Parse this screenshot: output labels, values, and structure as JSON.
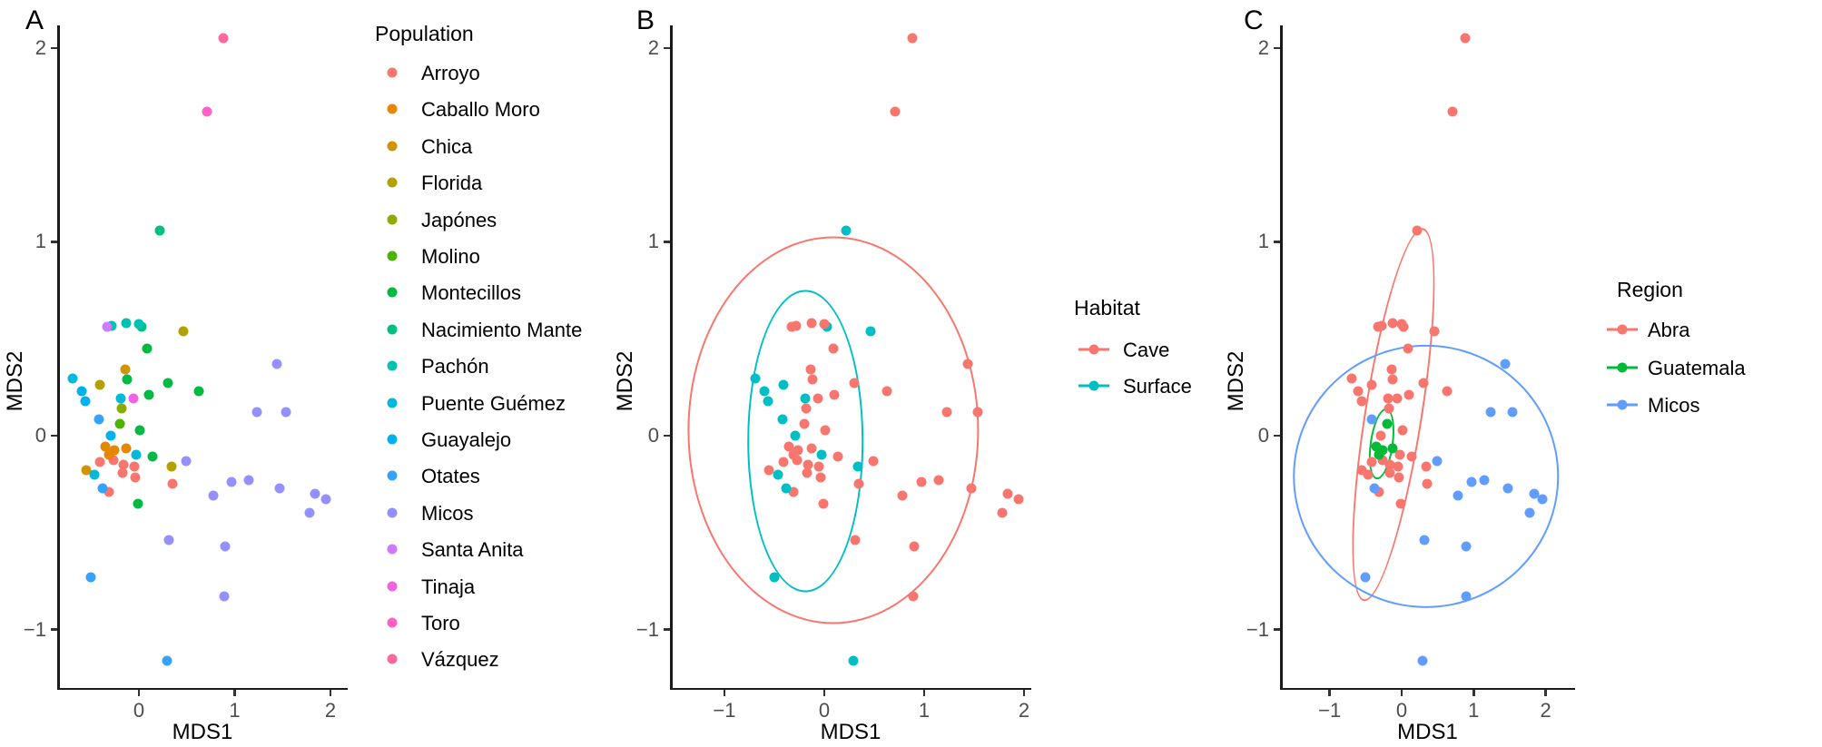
{
  "chart_data": {
    "type": "scatter",
    "description": "Three-panel MDS ordination scatter plot (same points colored three ways)",
    "panels": [
      {
        "id": "A",
        "label": "A",
        "xlabel": "MDS1",
        "ylabel": "MDS2",
        "color_by": "population",
        "x_domain": [
          -0.834,
          2.161
        ],
        "y_domain": [
          -1.302,
          2.117
        ],
        "x_ticks": [
          0,
          1,
          2
        ],
        "y_ticks": [
          -1,
          0,
          1,
          2
        ],
        "x_tick_labels": [
          "0",
          "1",
          "2"
        ],
        "y_tick_labels": [
          "−1",
          "0",
          "1",
          "2"
        ],
        "grid": false
      },
      {
        "id": "B",
        "label": "B",
        "xlabel": "MDS1",
        "ylabel": "MDS2",
        "color_by": "habitat",
        "x_domain": [
          -1.527,
          2.055
        ],
        "y_domain": [
          -1.302,
          2.117
        ],
        "x_ticks": [
          -1,
          0,
          1,
          2
        ],
        "y_ticks": [
          -1,
          0,
          1,
          2
        ],
        "x_tick_labels": [
          "−1",
          "0",
          "1",
          "2"
        ],
        "y_tick_labels": [
          "−1",
          "0",
          "1",
          "2"
        ],
        "grid": false
      },
      {
        "id": "C",
        "label": "C",
        "xlabel": "MDS1",
        "ylabel": "MDS2",
        "color_by": "region",
        "x_domain": [
          -1.664,
          2.383
        ],
        "y_domain": [
          -1.302,
          2.117
        ],
        "x_ticks": [
          -1,
          0,
          1,
          2
        ],
        "y_ticks": [
          -1,
          0,
          1,
          2
        ],
        "x_tick_labels": [
          "−1",
          "0",
          "1",
          "2"
        ],
        "y_tick_labels": [
          "−1",
          "0",
          "1",
          "2"
        ],
        "grid": false
      }
    ],
    "palettes": {
      "population": {
        "Arroyo": "#F8766D",
        "Caballo Moro": "#E58700",
        "Chica": "#CF9400",
        "Florida": "#B2A100",
        "Japónes": "#8CAB00",
        "Molino": "#4CB400",
        "Montecillos": "#00BA42",
        "Nacimiento Mante": "#00BF7F",
        "Pachón": "#00C1B2",
        "Puente Guémez": "#00B9DB",
        "Guayalejo": "#00B0F0",
        "Otates": "#35A2FF",
        "Micos": "#9590FF",
        "Santa Anita": "#CC7AFF",
        "Tinaja": "#F163E0",
        "Toro": "#FF61C7",
        "Vázquez": "#FF689E"
      },
      "habitat": {
        "Cave": "#F8766D",
        "Surface": "#00BFC4"
      },
      "region": {
        "Abra": "#F8766D",
        "Guatemala": "#00BA38",
        "Micos": "#619CFF"
      }
    },
    "legends": {
      "population": {
        "title": "Population",
        "items": [
          {
            "label": "Arroyo",
            "color": "#F8766D"
          },
          {
            "label": "Caballo Moro",
            "color": "#E58700"
          },
          {
            "label": "Chica",
            "color": "#CF9400"
          },
          {
            "label": "Florida",
            "color": "#B2A100"
          },
          {
            "label": "Japónes",
            "color": "#8CAB00"
          },
          {
            "label": "Molino",
            "color": "#4CB400"
          },
          {
            "label": "Montecillos",
            "color": "#00BA42"
          },
          {
            "label": "Nacimiento Mante",
            "color": "#00BF7F"
          },
          {
            "label": "Pachón",
            "color": "#00C1B2"
          },
          {
            "label": "Puente Guémez",
            "color": "#00B9DB"
          },
          {
            "label": "Guayalejo",
            "color": "#00B0F0"
          },
          {
            "label": "Otates",
            "color": "#35A2FF"
          },
          {
            "label": "Micos",
            "color": "#9590FF"
          },
          {
            "label": "Santa Anita",
            "color": "#CC7AFF"
          },
          {
            "label": "Tinaja",
            "color": "#F163E0"
          },
          {
            "label": "Toro",
            "color": "#FF61C7"
          },
          {
            "label": "Vázquez",
            "color": "#FF689E"
          }
        ]
      },
      "habitat": {
        "title": "Habitat",
        "items": [
          {
            "label": "Cave",
            "color": "#F8766D"
          },
          {
            "label": "Surface",
            "color": "#00BFC4"
          }
        ]
      },
      "region": {
        "title": "Region",
        "items": [
          {
            "label": "Abra",
            "color": "#F8766D"
          },
          {
            "label": "Guatemala",
            "color": "#00BA38"
          },
          {
            "label": "Micos",
            "color": "#619CFF"
          }
        ]
      }
    },
    "points": [
      {
        "x": -0.41,
        "y": -0.135,
        "population": "Arroyo",
        "habitat": "Cave",
        "region": "Abra"
      },
      {
        "x": -0.27,
        "y": -0.125,
        "population": "Arroyo",
        "habitat": "Cave",
        "region": "Abra"
      },
      {
        "x": -0.16,
        "y": -0.15,
        "population": "Arroyo",
        "habitat": "Cave",
        "region": "Abra"
      },
      {
        "x": -0.05,
        "y": -0.16,
        "population": "Arroyo",
        "habitat": "Cave",
        "region": "Abra"
      },
      {
        "x": -0.04,
        "y": -0.215,
        "population": "Arroyo",
        "habitat": "Cave",
        "region": "Abra"
      },
      {
        "x": -0.31,
        "y": -0.29,
        "population": "Arroyo",
        "habitat": "Cave",
        "region": "Abra"
      },
      {
        "x": 0.35,
        "y": -0.25,
        "population": "Arroyo",
        "habitat": "Cave",
        "region": "Abra"
      },
      {
        "x": -0.17,
        "y": -0.19,
        "population": "Arroyo",
        "habitat": "Cave",
        "region": "Abra"
      },
      {
        "x": -0.35,
        "y": -0.055,
        "population": "Caballo Moro",
        "habitat": "Cave",
        "region": "Guatemala"
      },
      {
        "x": -0.26,
        "y": -0.075,
        "population": "Caballo Moro",
        "habitat": "Cave",
        "region": "Guatemala"
      },
      {
        "x": -0.31,
        "y": -0.1,
        "population": "Caballo Moro",
        "habitat": "Cave",
        "region": "Guatemala"
      },
      {
        "x": -0.13,
        "y": -0.065,
        "population": "Caballo Moro",
        "habitat": "Cave",
        "region": "Guatemala"
      },
      {
        "x": -0.14,
        "y": 0.34,
        "population": "Chica",
        "habitat": "Cave",
        "region": "Abra"
      },
      {
        "x": -0.55,
        "y": -0.18,
        "population": "Chica",
        "habitat": "Cave",
        "region": "Abra"
      },
      {
        "x": 0.46,
        "y": 0.54,
        "population": "Florida",
        "habitat": "Surface",
        "region": "Abra"
      },
      {
        "x": -0.41,
        "y": 0.26,
        "population": "Florida",
        "habitat": "Surface",
        "region": "Abra"
      },
      {
        "x": 0.34,
        "y": -0.16,
        "population": "Florida",
        "habitat": "Surface",
        "region": "Abra"
      },
      {
        "x": -0.18,
        "y": 0.14,
        "population": "Japónes",
        "habitat": "Cave",
        "region": "Abra"
      },
      {
        "x": -0.2,
        "y": 0.06,
        "population": "Molino",
        "habitat": "Cave",
        "region": "Guatemala"
      },
      {
        "x": 0.09,
        "y": 0.45,
        "population": "Montecillos",
        "habitat": "Cave",
        "region": "Abra"
      },
      {
        "x": 0.63,
        "y": 0.23,
        "population": "Montecillos",
        "habitat": "Cave",
        "region": "Abra"
      },
      {
        "x": 0.01,
        "y": 0.03,
        "population": "Montecillos",
        "habitat": "Cave",
        "region": "Abra"
      },
      {
        "x": 0.14,
        "y": -0.11,
        "population": "Montecillos",
        "habitat": "Cave",
        "region": "Abra"
      },
      {
        "x": -0.01,
        "y": -0.35,
        "population": "Montecillos",
        "habitat": "Cave",
        "region": "Abra"
      },
      {
        "x": 0.3,
        "y": 0.27,
        "population": "Montecillos",
        "habitat": "Cave",
        "region": "Abra"
      },
      {
        "x": -0.12,
        "y": 0.29,
        "population": "Montecillos",
        "habitat": "Cave",
        "region": "Abra"
      },
      {
        "x": 0.1,
        "y": 0.21,
        "population": "Montecillos",
        "habitat": "Cave",
        "region": "Abra"
      },
      {
        "x": 0.22,
        "y": 1.06,
        "population": "Nacimiento Mante",
        "habitat": "Surface",
        "region": "Abra"
      },
      {
        "x": 0.03,
        "y": 0.56,
        "population": "Nacimiento Mante",
        "habitat": "Surface",
        "region": "Abra"
      },
      {
        "x": -0.28,
        "y": 0.565,
        "population": "Pachón",
        "habitat": "Cave",
        "region": "Abra"
      },
      {
        "x": -0.13,
        "y": 0.58,
        "population": "Pachón",
        "habitat": "Cave",
        "region": "Abra"
      },
      {
        "x": 0.0,
        "y": 0.575,
        "population": "Pachón",
        "habitat": "Cave",
        "region": "Abra"
      },
      {
        "x": -0.69,
        "y": 0.295,
        "population": "Puente Guémez",
        "habitat": "Surface",
        "region": "Abra"
      },
      {
        "x": -0.03,
        "y": -0.1,
        "population": "Puente Guémez",
        "habitat": "Surface",
        "region": "Abra"
      },
      {
        "x": -0.46,
        "y": -0.2,
        "population": "Puente Guémez",
        "habitat": "Surface",
        "region": "Abra"
      },
      {
        "x": -0.19,
        "y": 0.19,
        "population": "Puente Guémez",
        "habitat": "Surface",
        "region": "Abra"
      },
      {
        "x": -0.6,
        "y": 0.23,
        "population": "Guayalejo",
        "habitat": "Surface",
        "region": "Abra"
      },
      {
        "x": -0.56,
        "y": 0.18,
        "population": "Guayalejo",
        "habitat": "Surface",
        "region": "Abra"
      },
      {
        "x": -0.29,
        "y": 0.0,
        "population": "Guayalejo",
        "habitat": "Surface",
        "region": "Abra"
      },
      {
        "x": -0.42,
        "y": 0.085,
        "population": "Otates",
        "habitat": "Surface",
        "region": "Micos"
      },
      {
        "x": -0.38,
        "y": -0.27,
        "population": "Otates",
        "habitat": "Surface",
        "region": "Micos"
      },
      {
        "x": -0.5,
        "y": -0.73,
        "population": "Otates",
        "habitat": "Surface",
        "region": "Micos"
      },
      {
        "x": 0.29,
        "y": -1.16,
        "population": "Otates",
        "habitat": "Surface",
        "region": "Micos"
      },
      {
        "x": 1.44,
        "y": 0.37,
        "population": "Micos",
        "habitat": "Cave",
        "region": "Micos"
      },
      {
        "x": 1.23,
        "y": 0.12,
        "population": "Micos",
        "habitat": "Cave",
        "region": "Micos"
      },
      {
        "x": 1.54,
        "y": 0.12,
        "population": "Micos",
        "habitat": "Cave",
        "region": "Micos"
      },
      {
        "x": 0.49,
        "y": -0.13,
        "population": "Micos",
        "habitat": "Cave",
        "region": "Micos"
      },
      {
        "x": 0.78,
        "y": -0.31,
        "population": "Micos",
        "habitat": "Cave",
        "region": "Micos"
      },
      {
        "x": 0.97,
        "y": -0.24,
        "population": "Micos",
        "habitat": "Cave",
        "region": "Micos"
      },
      {
        "x": 1.15,
        "y": -0.23,
        "population": "Micos",
        "habitat": "Cave",
        "region": "Micos"
      },
      {
        "x": 1.47,
        "y": -0.27,
        "population": "Micos",
        "habitat": "Cave",
        "region": "Micos"
      },
      {
        "x": 1.84,
        "y": -0.3,
        "population": "Micos",
        "habitat": "Cave",
        "region": "Micos"
      },
      {
        "x": 1.95,
        "y": -0.33,
        "population": "Micos",
        "habitat": "Cave",
        "region": "Micos"
      },
      {
        "x": 1.78,
        "y": -0.4,
        "population": "Micos",
        "habitat": "Cave",
        "region": "Micos"
      },
      {
        "x": 0.31,
        "y": -0.54,
        "population": "Micos",
        "habitat": "Cave",
        "region": "Micos"
      },
      {
        "x": 0.9,
        "y": -0.57,
        "population": "Micos",
        "habitat": "Cave",
        "region": "Micos"
      },
      {
        "x": 0.89,
        "y": -0.83,
        "population": "Micos",
        "habitat": "Cave",
        "region": "Micos"
      },
      {
        "x": -0.33,
        "y": 0.56,
        "population": "Santa Anita",
        "habitat": "Cave",
        "region": "Abra"
      },
      {
        "x": -0.06,
        "y": 0.19,
        "population": "Tinaja",
        "habitat": "Cave",
        "region": "Abra"
      },
      {
        "x": 0.71,
        "y": 1.67,
        "population": "Toro",
        "habitat": "Cave",
        "region": "Abra"
      },
      {
        "x": 0.88,
        "y": 2.05,
        "population": "Vázquez",
        "habitat": "Cave",
        "region": "Abra"
      }
    ],
    "ellipses": [
      {
        "panel": "B",
        "group": "Cave",
        "color": "#F8766D",
        "cx": 0.09,
        "cy": 0.03,
        "rx": 1.46,
        "ry": 1.0,
        "rot": 0
      },
      {
        "panel": "B",
        "group": "Surface",
        "color": "#00BFC4",
        "cx": -0.19,
        "cy": -0.03,
        "rx": 0.58,
        "ry": 0.78,
        "rot": 0
      },
      {
        "panel": "C",
        "group": "Abra",
        "color": "#F8766D",
        "cx": -0.11,
        "cy": 0.11,
        "rx": 0.405,
        "ry": 0.975,
        "rot": 9
      },
      {
        "panel": "C",
        "group": "Guatemala",
        "color": "#00BA38",
        "cx": -0.28,
        "cy": -0.04,
        "rx": 0.165,
        "ry": 0.185,
        "rot": 8
      },
      {
        "panel": "C",
        "group": "Micos",
        "color": "#619CFF",
        "cx": 0.34,
        "cy": -0.21,
        "rx": 1.85,
        "ry": 0.68,
        "rot": 0
      }
    ]
  }
}
